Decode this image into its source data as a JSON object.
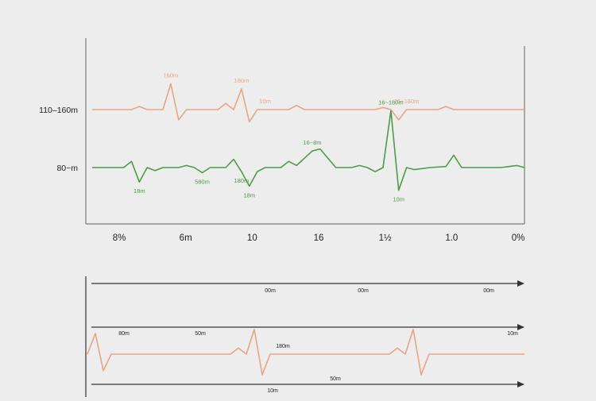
{
  "colors": {
    "background": "#ededed",
    "series_orange": "#e8a585",
    "series_green": "#4f9a4a",
    "axis": "#7c7c7c",
    "arrow": "#333333",
    "text": "#222222"
  },
  "chart_data": [
    {
      "type": "line",
      "title": "",
      "y_labels": [
        "110–160m",
        "80~m"
      ],
      "x_tick_labels": [
        "8%",
        "6m",
        "10",
        "16",
        "1½",
        "1.0",
        "0%"
      ],
      "grid": false,
      "series": [
        {
          "color": "#e8a585",
          "baseline_label": "110–160m",
          "points": [
            [
              0,
              0
            ],
            [
              5,
              0
            ],
            [
              6,
              3
            ],
            [
              7,
              0
            ],
            [
              9,
              0
            ],
            [
              10,
              25
            ],
            [
              11,
              -10
            ],
            [
              12,
              0
            ],
            [
              16,
              0
            ],
            [
              17,
              6
            ],
            [
              18,
              0
            ],
            [
              19,
              20
            ],
            [
              20,
              -12
            ],
            [
              21,
              0
            ],
            [
              25,
              0
            ],
            [
              26,
              4
            ],
            [
              27,
              0
            ],
            [
              36,
              0
            ],
            [
              37,
              2
            ],
            [
              38,
              0
            ],
            [
              39,
              -10
            ],
            [
              40,
              0
            ],
            [
              44,
              0
            ],
            [
              45,
              3
            ],
            [
              46,
              0
            ],
            [
              55,
              0
            ]
          ],
          "annotations": [
            {
              "x": 10,
              "text": "160m"
            },
            {
              "x": 19,
              "text": "180m"
            },
            {
              "x": 22,
              "text": "10m"
            },
            {
              "x": 40,
              "text": "16~180m"
            }
          ]
        },
        {
          "color": "#4f9a4a",
          "baseline_label": "80~m",
          "points": [
            [
              0,
              0
            ],
            [
              4,
              0
            ],
            [
              5,
              6
            ],
            [
              6,
              -14
            ],
            [
              7,
              0
            ],
            [
              8,
              -3
            ],
            [
              9,
              0
            ],
            [
              11,
              0
            ],
            [
              12,
              2
            ],
            [
              13,
              0
            ],
            [
              14,
              -5
            ],
            [
              15,
              0
            ],
            [
              17,
              0
            ],
            [
              18,
              8
            ],
            [
              19,
              -4
            ],
            [
              20,
              -18
            ],
            [
              21,
              -4
            ],
            [
              22,
              0
            ],
            [
              24,
              0
            ],
            [
              25,
              6
            ],
            [
              26,
              2
            ],
            [
              28,
              16
            ],
            [
              29,
              18
            ],
            [
              31,
              0
            ],
            [
              33,
              0
            ],
            [
              34,
              2
            ],
            [
              35,
              0
            ],
            [
              36,
              -4
            ],
            [
              37,
              0
            ],
            [
              38,
              55
            ],
            [
              39,
              -22
            ],
            [
              40,
              0
            ],
            [
              41,
              -2
            ],
            [
              43,
              0
            ],
            [
              45,
              1
            ],
            [
              46,
              12
            ],
            [
              47,
              0
            ],
            [
              52,
              0
            ],
            [
              54,
              2
            ],
            [
              55,
              0
            ]
          ],
          "annotations": [
            {
              "x": 6,
              "text": "18m"
            },
            {
              "x": 14,
              "text": "580m"
            },
            {
              "x": 20,
              "text": "18m"
            },
            {
              "x": 19,
              "text": "180m"
            },
            {
              "x": 28,
              "text": "16~8m"
            },
            {
              "x": 38,
              "text": "16~180m"
            },
            {
              "x": 39,
              "text": "10m"
            }
          ]
        }
      ]
    },
    {
      "type": "line",
      "title": "",
      "arrow_labels": {
        "top": [
          "00m",
          "00m",
          "00m"
        ],
        "middle": [
          "80m",
          "50m",
          "10m"
        ],
        "bottom": [
          "50m",
          "10m"
        ]
      },
      "series": [
        {
          "color": "#e8a585",
          "points": [
            [
              0,
              0
            ],
            [
              1,
              10
            ],
            [
              2,
              -8
            ],
            [
              3,
              0
            ],
            [
              18,
              0
            ],
            [
              19,
              3
            ],
            [
              20,
              0
            ],
            [
              21,
              12
            ],
            [
              22,
              -10
            ],
            [
              23,
              0
            ],
            [
              38,
              0
            ],
            [
              39,
              3
            ],
            [
              40,
              0
            ],
            [
              41,
              12
            ],
            [
              42,
              -10
            ],
            [
              43,
              0
            ],
            [
              55,
              0
            ]
          ],
          "annotations": [
            {
              "x": 22,
              "text": "180m"
            }
          ]
        }
      ]
    }
  ]
}
